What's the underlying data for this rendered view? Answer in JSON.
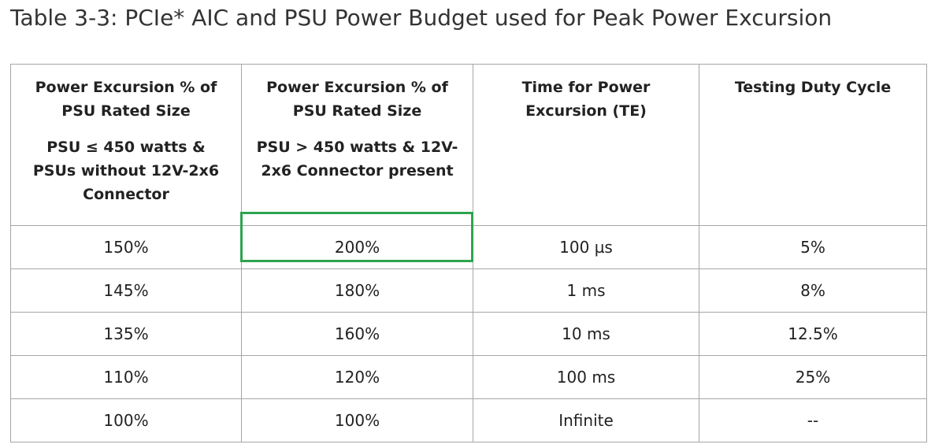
{
  "title": "Table 3-3: PCIe* AIC and PSU Power Budget used for Peak Power Excursion",
  "table": {
    "header": [
      [
        "Power Excursion % of PSU Rated Size",
        "PSU ≤ 450 watts & PSUs without 12V-2x6 Connector"
      ],
      [
        "Power Excursion % of PSU Rated Size",
        "PSU > 450 watts & 12V-2x6 Connector present"
      ],
      [
        "Time for Power Excursion (TE)"
      ],
      [
        "Testing Duty Cycle"
      ]
    ],
    "rows": [
      [
        "150%",
        "200%",
        "100 µs",
        "5%"
      ],
      [
        "145%",
        "180%",
        "1 ms",
        "8%"
      ],
      [
        "135%",
        "160%",
        "10 ms",
        "12.5%"
      ],
      [
        "110%",
        "120%",
        "100 ms",
        "25%"
      ],
      [
        "100%",
        "100%",
        "Infinite",
        "--"
      ]
    ]
  }
}
